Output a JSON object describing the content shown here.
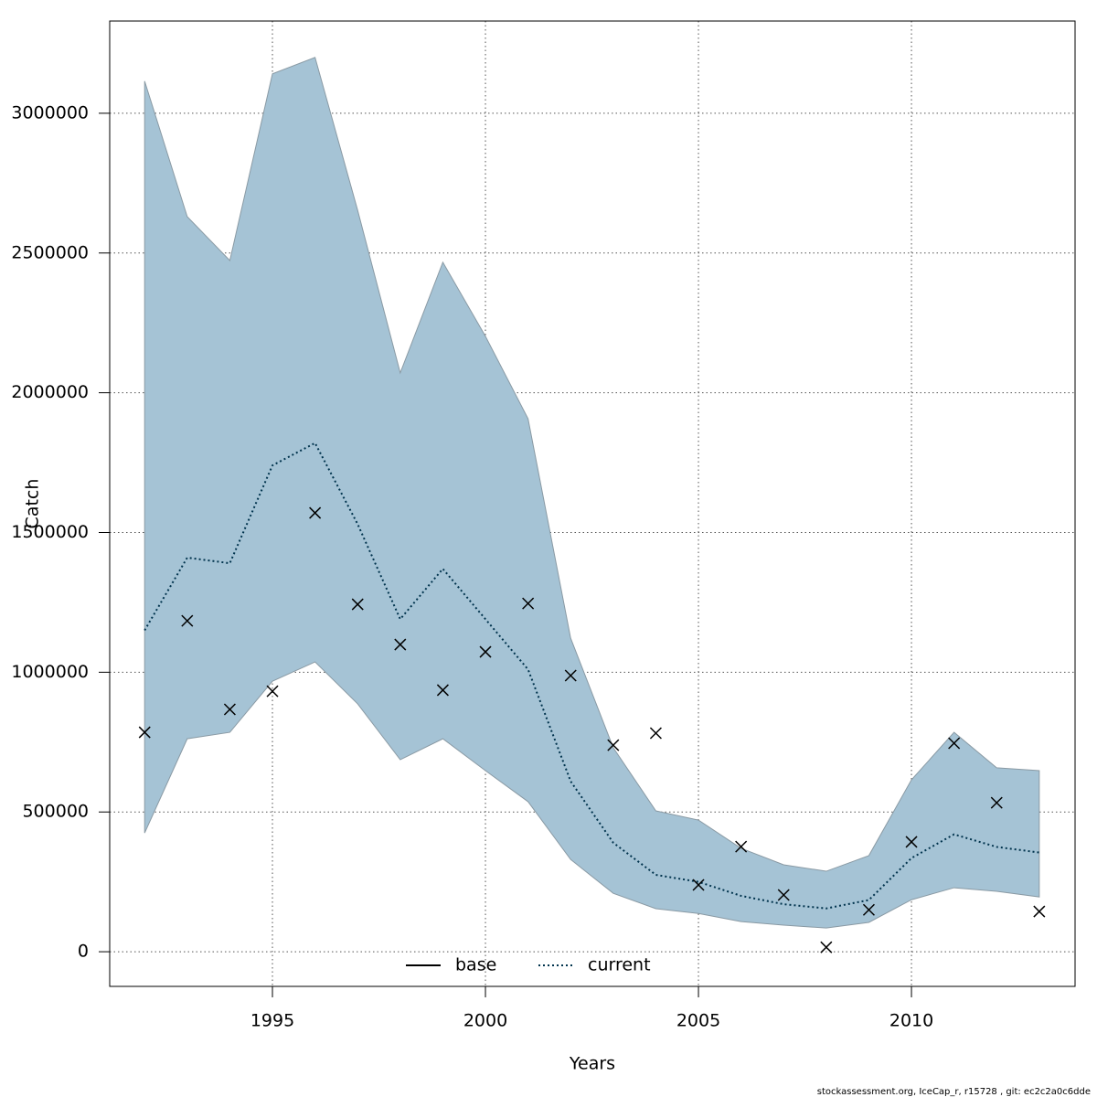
{
  "chart_data": {
    "type": "line",
    "xlabel": "Years",
    "ylabel": "Catch",
    "footer": "stockassessment.org, IceCap_r, r15728 , git: ec2c2a0c6dde",
    "x": [
      1992,
      1993,
      1994,
      1995,
      1996,
      1997,
      1998,
      1999,
      2000,
      2001,
      2002,
      2003,
      2004,
      2005,
      2006,
      2007,
      2008,
      2009,
      2010,
      2011,
      2012,
      2013
    ],
    "series": [
      {
        "color": "#00334d",
        "linestyle": "dotted",
        "band_color": "#a5c3d5",
        "values": [
          1150000,
          1410000,
          1390000,
          1740000,
          1820000,
          1530000,
          1190000,
          1370000,
          1190000,
          1010000,
          610000,
          390000,
          275000,
          250000,
          200000,
          170000,
          155000,
          185000,
          335000,
          420000,
          375000,
          355000
        ],
        "upper": [
          3115000,
          2630000,
          2473000,
          3141000,
          3200000,
          2653000,
          2071000,
          2467000,
          2202000,
          1907000,
          1122000,
          730000,
          504000,
          471000,
          370000,
          311000,
          288000,
          344000,
          615000,
          785000,
          658000,
          648000
        ],
        "lower": [
          425000,
          762000,
          785000,
          968000,
          1037000,
          887000,
          687000,
          762000,
          648000,
          537000,
          330000,
          209000,
          154000,
          137000,
          108000,
          95000,
          85000,
          105000,
          186000,
          229000,
          216000,
          196000
        ]
      }
    ],
    "observations": [
      785000,
      1184000,
      867000,
      932000,
      1570000,
      1243000,
      1099000,
      936000,
      1073000,
      1246000,
      988000,
      739000,
      782000,
      239000,
      376000,
      203000,
      16000,
      150000,
      393000,
      746000,
      533000,
      144000
    ],
    "observation_color": "#000000",
    "legend": {
      "position": "bottom",
      "entries": [
        {
          "name": "base",
          "color": "#000000",
          "linestyle": "solid"
        },
        {
          "name": "current",
          "color": "#00334d",
          "linestyle": "dotted"
        }
      ]
    },
    "xlim": [
      1991.18,
      2013.84
    ],
    "ylim": [
      -124000,
      3330000
    ],
    "xticks": [
      1995,
      2000,
      2005,
      2010
    ],
    "yticks": [
      0,
      500000,
      1000000,
      1500000,
      2000000,
      2500000,
      3000000
    ],
    "grid": true
  }
}
